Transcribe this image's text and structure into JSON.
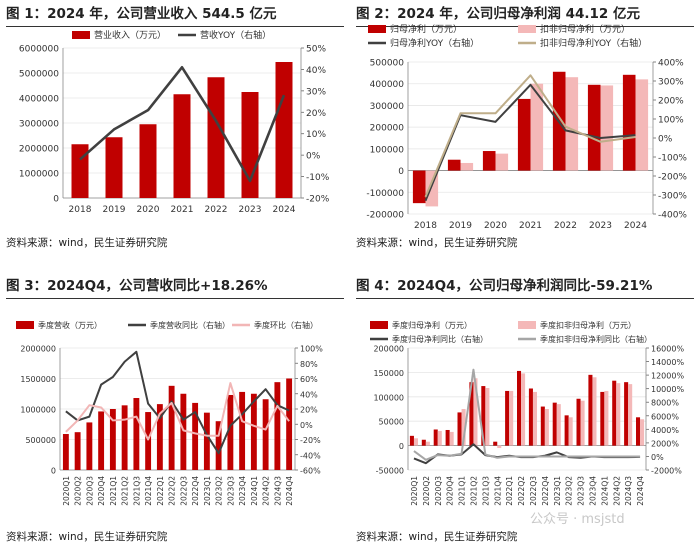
{
  "panels": [
    {
      "title": "图 1：2024 年，公司营业收入 544.5 亿元",
      "source": "资料来源：wind，民生证券研究院",
      "chart_data": {
        "type": "bar+line",
        "categories": [
          "2018",
          "2019",
          "2020",
          "2021",
          "2022",
          "2023",
          "2024"
        ],
        "left_axis": {
          "ticks": [
            "0",
            "1000000",
            "2000000",
            "3000000",
            "4000000",
            "5000000",
            "6000000"
          ],
          "ylim": [
            0,
            6000000
          ]
        },
        "right_axis": {
          "ticks": [
            "-20%",
            "-10%",
            "0%",
            "10%",
            "20%",
            "30%",
            "40%",
            "50%"
          ],
          "ylim": [
            -20,
            50
          ]
        },
        "series": [
          {
            "name": "营业收入（万元）",
            "kind": "bar",
            "axis": "left",
            "color": "#c00000",
            "values": [
              2150000,
              2430000,
              2950000,
              4150000,
              4830000,
              4240000,
              5440000
            ]
          },
          {
            "name": "营收YOY（右轴）",
            "kind": "line",
            "axis": "right",
            "color": "#404040",
            "values": [
              -2,
              12,
              21,
              41,
              16,
              -12,
              28
            ]
          }
        ]
      }
    },
    {
      "title": "图 2：2024 年，公司归母净利润 44.12 亿元",
      "source": "资料来源：wind，民生证券研究院",
      "chart_data": {
        "type": "bar+line",
        "categories": [
          "2018",
          "2019",
          "2020",
          "2021",
          "2022",
          "2023",
          "2024"
        ],
        "left_axis": {
          "ticks": [
            "-200000",
            "-100000",
            "0",
            "100000",
            "200000",
            "300000",
            "400000",
            "500000"
          ],
          "ylim": [
            -200000,
            500000
          ]
        },
        "right_axis": {
          "ticks": [
            "-400%",
            "-300%",
            "-200%",
            "-100%",
            "0%",
            "100%",
            "200%",
            "300%",
            "400%"
          ],
          "ylim": [
            -400,
            400
          ]
        },
        "series": [
          {
            "name": "归母净利（万元）",
            "kind": "bar",
            "axis": "left",
            "color": "#c00000",
            "values": [
              -150000,
              50000,
              90000,
              330000,
              455000,
              395000,
              441000
            ]
          },
          {
            "name": "扣非归母净利（万元）",
            "kind": "bar",
            "axis": "left",
            "color": "#f4b8b8",
            "values": [
              -165000,
              35000,
              78000,
              400000,
              430000,
              392000,
              420000
            ]
          },
          {
            "name": "归母净利YOY（右轴）",
            "kind": "line",
            "axis": "right",
            "color": "#404040",
            "values": [
              -330,
              120,
              85,
              280,
              40,
              0,
              15
            ]
          },
          {
            "name": "扣非归母净利YOY（右轴）",
            "kind": "line",
            "axis": "right",
            "color": "#bfae8a",
            "values": [
              -310,
              130,
              130,
              330,
              60,
              -20,
              5
            ]
          }
        ]
      }
    },
    {
      "title": "图 3：2024Q4，公司营收同比+18.26%",
      "source": "资料来源：wind，民生证券研究院",
      "chart_data": {
        "type": "bar+line",
        "categories": [
          "2020Q1",
          "2020Q2",
          "2020Q3",
          "2020Q4",
          "2021Q1",
          "2021Q2",
          "2021Q3",
          "2021Q4",
          "2022Q1",
          "2022Q2",
          "2022Q3",
          "2022Q4",
          "2023Q1",
          "2023Q2",
          "2023Q3",
          "2023Q4",
          "2024Q1",
          "2024Q2",
          "2024Q3",
          "2024Q4"
        ],
        "left_axis": {
          "ticks": [
            "0",
            "500000",
            "1000000",
            "1500000",
            "2000000"
          ],
          "ylim": [
            0,
            2000000
          ]
        },
        "right_axis": {
          "ticks": [
            "-60%",
            "-40%",
            "-20%",
            "0%",
            "20%",
            "40%",
            "60%",
            "80%",
            "100%"
          ],
          "ylim": [
            -60,
            100
          ]
        },
        "series": [
          {
            "name": "季度营收（万元）",
            "kind": "bar",
            "axis": "left",
            "color": "#c00000",
            "values": [
              590000,
              620000,
              780000,
              960000,
              1000000,
              1060000,
              1180000,
              950000,
              1080000,
              1380000,
              1250000,
              1100000,
              940000,
              800000,
              1230000,
              1280000,
              1250000,
              1160000,
              1440000,
              1500000
            ]
          },
          {
            "name": "季度营收同比（右轴）",
            "kind": "line",
            "axis": "right",
            "color": "#404040",
            "values": [
              17,
              5,
              10,
              52,
              62,
              82,
              95,
              27,
              8,
              30,
              6,
              16,
              -14,
              -38,
              -2,
              13,
              30,
              46,
              25,
              18
            ]
          },
          {
            "name": "季度环比（右轴）",
            "kind": "line",
            "axis": "right",
            "color": "#f2b6b6",
            "values": [
              -10,
              5,
              25,
              22,
              5,
              6,
              10,
              -20,
              14,
              28,
              -8,
              -12,
              -15,
              -15,
              54,
              4,
              -2,
              -7,
              24,
              4
            ]
          }
        ]
      }
    },
    {
      "title": "图 4：2024Q4，公司归母净利润同比-59.21%",
      "source": "资料来源：wind，民生证券研究院",
      "chart_data": {
        "type": "bar+line",
        "categories": [
          "2020Q1",
          "2020Q2",
          "2020Q3",
          "2020Q4",
          "2021Q1",
          "2021Q2",
          "2021Q3",
          "2021Q4",
          "2022Q1",
          "2022Q2",
          "2022Q3",
          "2022Q4",
          "2023Q1",
          "2023Q2",
          "2023Q3",
          "2023Q4",
          "2024Q1",
          "2024Q2",
          "2024Q3",
          "2024Q4"
        ],
        "left_axis": {
          "ticks": [
            "-50000",
            "0",
            "50000",
            "100000",
            "150000",
            "200000"
          ],
          "ylim": [
            -50000,
            200000
          ]
        },
        "right_axis": {
          "ticks": [
            "-2000%",
            "0%",
            "2000%",
            "4000%",
            "6000%",
            "8000%",
            "10000%",
            "12000%",
            "14000%",
            "16000%"
          ],
          "ylim": [
            -2000,
            16000
          ]
        },
        "series": [
          {
            "name": "季度归母净利（万元）",
            "kind": "bar",
            "axis": "left",
            "color": "#c00000",
            "values": [
              20000,
              12000,
              33000,
              32000,
              68000,
              130000,
              122000,
              8000,
              112000,
              153000,
              117000,
              80000,
              88000,
              62000,
              96000,
              145000,
              110000,
              133000,
              130000,
              58000
            ]
          },
          {
            "name": "季度扣非归母净利（万元）",
            "kind": "bar",
            "axis": "left",
            "color": "#f4b8b8",
            "values": [
              15000,
              8000,
              30000,
              28000,
              75000,
              138000,
              118000,
              -5000,
              112000,
              148000,
              110000,
              75000,
              85000,
              58000,
              92000,
              140000,
              112000,
              128000,
              126000,
              54000
            ]
          },
          {
            "name": "季度归母净利同比（右轴）",
            "kind": "line",
            "axis": "right",
            "color": "#404040",
            "values": [
              -300,
              -1000,
              300,
              100,
              300,
              1800,
              200,
              -100,
              100,
              -100,
              -100,
              100,
              600,
              -100,
              -200,
              0,
              -100,
              -100,
              -100,
              -60
            ]
          },
          {
            "name": "季度扣非归母净利同比（右轴）",
            "kind": "line",
            "axis": "right",
            "color": "#a6a6a6",
            "values": [
              800,
              -500,
              200,
              100,
              400,
              12800,
              300,
              -200,
              0,
              0,
              0,
              0,
              0,
              0,
              0,
              0,
              0,
              0,
              0,
              0
            ]
          }
        ]
      }
    }
  ],
  "watermark": "公众号 · msjstd"
}
